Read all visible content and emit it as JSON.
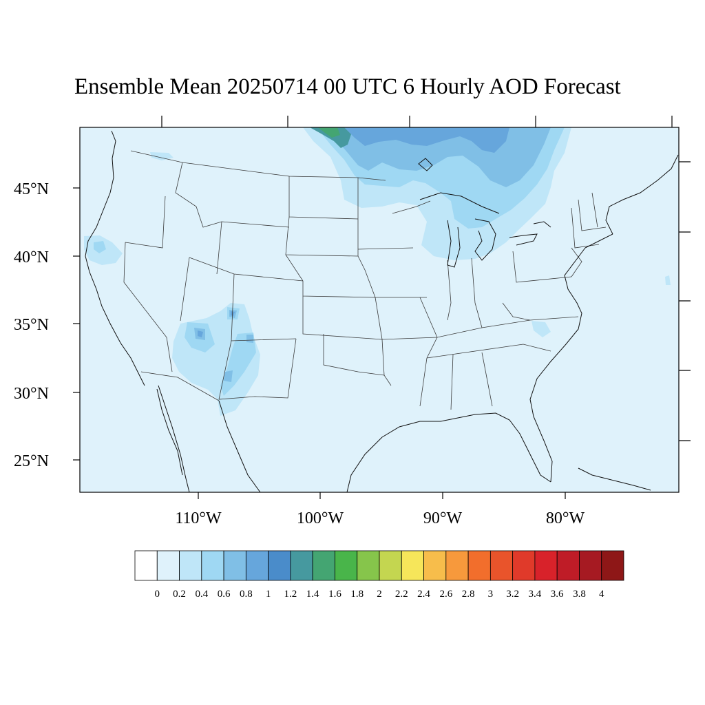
{
  "title": "Ensemble Mean 20250714 00 UTC 6 Hourly AOD Forecast",
  "lat_labels": [
    "45°N",
    "40°N",
    "35°N",
    "30°N",
    "25°N"
  ],
  "lon_labels": [
    "110°W",
    "100°W",
    "90°W",
    "80°W"
  ],
  "colorbar": {
    "labels": [
      "0",
      "0.2",
      "0.4",
      "0.6",
      "0.8",
      "1",
      "1.2",
      "1.4",
      "1.6",
      "1.8",
      "2",
      "2.2",
      "2.4",
      "2.6",
      "2.8",
      "3",
      "3.2",
      "3.4",
      "3.6",
      "3.8",
      "4"
    ],
    "colors": [
      "#ffffff",
      "#dff2fb",
      "#bfe6f8",
      "#9fd8f3",
      "#80bfe6",
      "#66a6dc",
      "#4a8cca",
      "#46999f",
      "#44a572",
      "#49b54a",
      "#86c54b",
      "#c4d650",
      "#f6e65a",
      "#f7bd4b",
      "#f7993c",
      "#f26e2c",
      "#e9542b",
      "#e03a2a",
      "#d8222a",
      "#bf1c27",
      "#a61a22",
      "#8e1717"
    ]
  },
  "colors": {
    "background_aod": "#dff2fb",
    "aod_low": "#bfe6f8",
    "aod_mid": "#9fd8f3",
    "aod_med": "#80bfe6",
    "aod_high": "#66a6dc",
    "aod_teal": "#46999f",
    "aod_green": "#44a572"
  }
}
